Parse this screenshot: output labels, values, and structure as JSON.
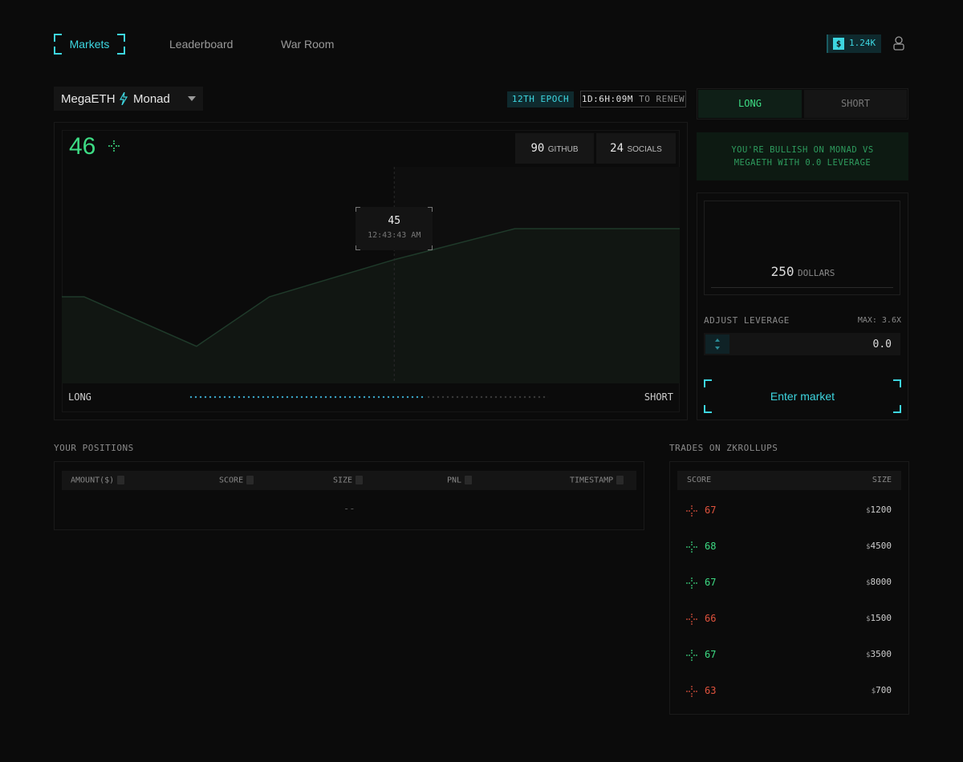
{
  "nav": {
    "items": [
      "Markets",
      "Leaderboard",
      "War Room"
    ],
    "currency": "$",
    "balance": "1.24K"
  },
  "market": {
    "pair_a": "MegaETH",
    "pair_b": "Monad",
    "epoch": "12TH EPOCH",
    "timer": "1D:6H:09M",
    "timer_suffix": "TO RENEW"
  },
  "score_card": {
    "score": 46,
    "github": {
      "value": 90,
      "label": "GITHUB"
    },
    "socials": {
      "value": 24,
      "label": "SOCIALS"
    },
    "long_label": "LONG",
    "short_label": "SHORT"
  },
  "chart_data": {
    "type": "line",
    "x": [
      0,
      3.6,
      21.8,
      33.6,
      53.8,
      73.3,
      100
    ],
    "values": [
      43.8,
      43.8,
      42.2,
      43.8,
      45,
      46,
      46
    ],
    "xlim": [
      0,
      100
    ],
    "ylim": [
      41,
      48
    ],
    "color": "#1f3a2a",
    "tooltip": {
      "x": 53.8,
      "value": 45,
      "time": "12:43:43 AM"
    }
  },
  "order": {
    "tabs": [
      "LONG",
      "SHORT"
    ],
    "message": "YOU'RE BULLISH ON MONAD VS MEGAETH WITH 0.0 LEVERAGE",
    "amount": 250,
    "amount_unit": "DOLLARS",
    "leverage_label": "ADJUST LEVERAGE",
    "max": "MAX: 3.6X",
    "leverage": "0.0",
    "button": "Enter market"
  },
  "positions": {
    "title": "YOUR POSITIONS",
    "columns": [
      "AMOUNT($)",
      "SCORE",
      "SIZE",
      "PNL",
      "TIMESTAMP"
    ],
    "empty": "--"
  },
  "trades": {
    "title": "TRADES ON ZKROLLUPS",
    "columns": [
      "SCORE",
      "SIZE"
    ],
    "currency": "$",
    "rows": [
      {
        "score": 67,
        "size": 1200,
        "color": "#e0533d"
      },
      {
        "score": 68,
        "size": 4500,
        "color": "#3ddc84"
      },
      {
        "score": 67,
        "size": 8000,
        "color": "#3ddc84"
      },
      {
        "score": 66,
        "size": 1500,
        "color": "#e0533d"
      },
      {
        "score": 67,
        "size": 3500,
        "color": "#3ddc84"
      },
      {
        "score": 63,
        "size": 700,
        "color": "#e0533d"
      }
    ]
  }
}
